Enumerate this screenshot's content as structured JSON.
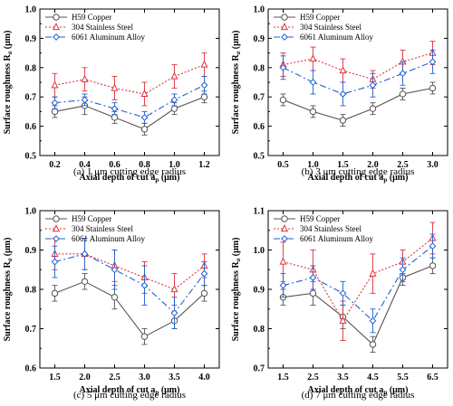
{
  "legend": [
    "H59 Copper",
    "304 Stainless Steel",
    "6061 Aluminum Alloy"
  ],
  "colors": {
    "copper": "#555555",
    "steel": "#e0303a",
    "aluminum": "#1f5fd6"
  },
  "ylabel_main": "Surface roughness R",
  "ylabel_sub": "a",
  "ylabel_unit": " (μm)",
  "xlabel_main": "Axial depth of cut a",
  "xlabel_sub": "p",
  "xlabel_unit": " (μm)",
  "chart_data": [
    {
      "type": "line",
      "caption": "(a) 1 μm cutting edge radius",
      "x": [
        0.2,
        0.4,
        0.6,
        0.8,
        1.0,
        1.2
      ],
      "xticks": [
        "0.2",
        "0.4",
        "0.6",
        "0.8",
        "1.0",
        "1.2"
      ],
      "xlim": [
        0.1,
        1.3
      ],
      "ylim": [
        0.5,
        1.0
      ],
      "yticks": [
        "0.5",
        "0.6",
        "0.7",
        "0.8",
        "0.9",
        "1.0"
      ],
      "series": [
        {
          "name": "H59 Copper",
          "values": [
            0.65,
            0.67,
            0.63,
            0.59,
            0.66,
            0.7
          ],
          "err": [
            0.02,
            0.03,
            0.02,
            0.02,
            0.02,
            0.02
          ]
        },
        {
          "name": "304 Stainless Steel",
          "values": [
            0.74,
            0.76,
            0.73,
            0.71,
            0.77,
            0.81
          ],
          "err": [
            0.04,
            0.04,
            0.04,
            0.04,
            0.04,
            0.04
          ]
        },
        {
          "name": "6061 Aluminum Alloy",
          "values": [
            0.68,
            0.69,
            0.66,
            0.63,
            0.69,
            0.74
          ],
          "err": [
            0.02,
            0.02,
            0.02,
            0.02,
            0.02,
            0.03
          ]
        }
      ]
    },
    {
      "type": "line",
      "caption": "(b) 3 μm cutting edge radius",
      "x": [
        0.5,
        1.0,
        1.5,
        2.0,
        2.5,
        3.0
      ],
      "xticks": [
        "0.5",
        "1.0",
        "1.5",
        "2.0",
        "2.5",
        "3.0"
      ],
      "xlim": [
        0.25,
        3.25
      ],
      "ylim": [
        0.5,
        1.0
      ],
      "yticks": [
        "0.5",
        "0.6",
        "0.7",
        "0.8",
        "0.9",
        "1.0"
      ],
      "series": [
        {
          "name": "H59 Copper",
          "values": [
            0.69,
            0.65,
            0.62,
            0.66,
            0.71,
            0.73
          ],
          "err": [
            0.02,
            0.02,
            0.02,
            0.02,
            0.02,
            0.02
          ]
        },
        {
          "name": "304 Stainless Steel",
          "values": [
            0.81,
            0.83,
            0.79,
            0.76,
            0.82,
            0.85
          ],
          "err": [
            0.04,
            0.04,
            0.04,
            0.03,
            0.04,
            0.04
          ]
        },
        {
          "name": "6061 Aluminum Alloy",
          "values": [
            0.8,
            0.75,
            0.71,
            0.74,
            0.78,
            0.82
          ],
          "err": [
            0.04,
            0.04,
            0.04,
            0.04,
            0.04,
            0.04
          ]
        }
      ]
    },
    {
      "type": "line",
      "caption": "(c) 5 μm cutting edge radius",
      "x": [
        1.5,
        2.0,
        2.5,
        3.0,
        3.5,
        4.0
      ],
      "xticks": [
        "1.5",
        "2.0",
        "2.5",
        "3.0",
        "3.5",
        "4.0"
      ],
      "xlim": [
        1.25,
        4.25
      ],
      "ylim": [
        0.6,
        1.0
      ],
      "yticks": [
        "0.6",
        "0.7",
        "0.8",
        "0.9",
        "1.0"
      ],
      "series": [
        {
          "name": "H59 Copper",
          "values": [
            0.79,
            0.82,
            0.78,
            0.68,
            0.72,
            0.79
          ],
          "err": [
            0.02,
            0.02,
            0.03,
            0.02,
            0.02,
            0.02
          ]
        },
        {
          "name": "304 Stainless Steel",
          "values": [
            0.89,
            0.89,
            0.86,
            0.83,
            0.8,
            0.86
          ],
          "err": [
            0.04,
            0.04,
            0.04,
            0.04,
            0.04,
            0.03
          ]
        },
        {
          "name": "6061 Aluminum Alloy",
          "values": [
            0.87,
            0.89,
            0.85,
            0.81,
            0.74,
            0.84
          ],
          "err": [
            0.04,
            0.04,
            0.05,
            0.05,
            0.04,
            0.03
          ]
        }
      ]
    },
    {
      "type": "line",
      "caption": "(d) 7 μm cutting edge radius",
      "x": [
        1.5,
        2.5,
        3.5,
        4.5,
        5.5,
        6.5
      ],
      "xticks": [
        "1.5",
        "2.5",
        "3.5",
        "4.5",
        "5.5",
        "6.5"
      ],
      "xlim": [
        1.0,
        7.0
      ],
      "ylim": [
        0.7,
        1.1
      ],
      "yticks": [
        "0.7",
        "0.8",
        "0.9",
        "1.0",
        "1.1"
      ],
      "series": [
        {
          "name": "H59 Copper",
          "values": [
            0.88,
            0.89,
            0.83,
            0.76,
            0.93,
            0.96
          ],
          "err": [
            0.02,
            0.03,
            0.03,
            0.02,
            0.02,
            0.02
          ]
        },
        {
          "name": "304 Stainless Steel",
          "values": [
            0.97,
            0.95,
            0.82,
            0.94,
            0.97,
            1.03
          ],
          "err": [
            0.05,
            0.05,
            0.05,
            0.05,
            0.03,
            0.04
          ]
        },
        {
          "name": "6061 Aluminum Alloy",
          "values": [
            0.91,
            0.93,
            0.89,
            0.82,
            0.95,
            1.01
          ],
          "err": [
            0.03,
            0.03,
            0.03,
            0.03,
            0.03,
            0.03
          ]
        }
      ]
    }
  ]
}
